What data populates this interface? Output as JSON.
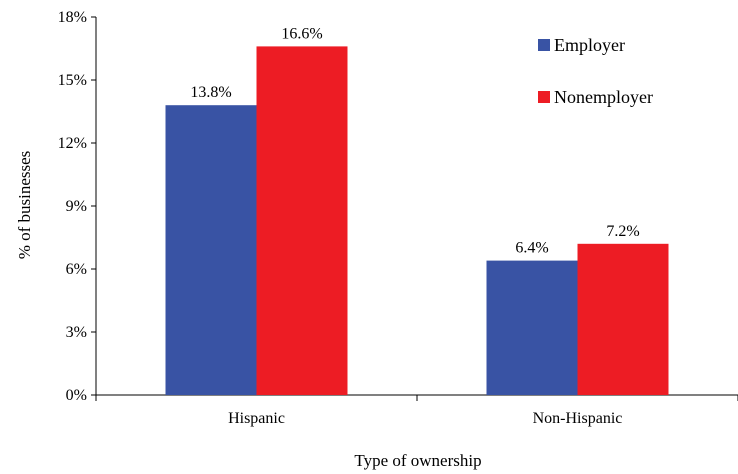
{
  "chart_data": {
    "type": "bar",
    "categories": [
      "Hispanic",
      "Non-Hispanic"
    ],
    "series": [
      {
        "name": "Employer",
        "values": [
          13.8,
          6.4
        ],
        "labels": [
          "13.8%",
          "6.4%"
        ],
        "color": "#3953a4"
      },
      {
        "name": "Nonemployer",
        "values": [
          16.6,
          7.2
        ],
        "labels": [
          "16.6%",
          "7.2%"
        ],
        "color": "#ed1c24"
      }
    ],
    "xlabel": "Type of ownership",
    "ylabel": "% of businesses",
    "ylim": [
      0,
      18
    ],
    "yticks": [
      0,
      3,
      6,
      9,
      12,
      15,
      18
    ],
    "ytick_labels": [
      "0%",
      "3%",
      "6%",
      "9%",
      "12%",
      "15%",
      "18%"
    ],
    "grid": false,
    "legend_position": "top-right"
  }
}
